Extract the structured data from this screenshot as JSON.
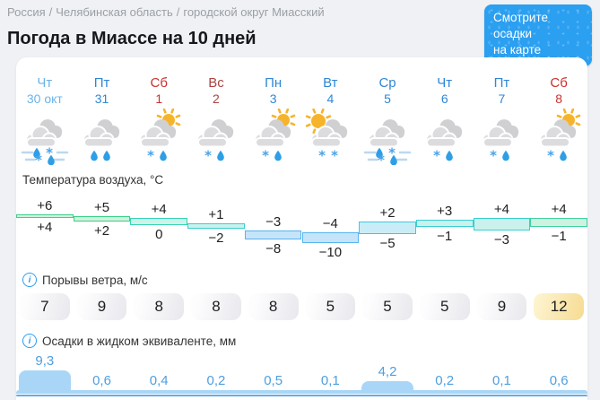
{
  "page": {
    "breadcrumb": [
      "Россия",
      "Челябинская область",
      "городской округ Миасский"
    ],
    "breadcrumb_separator": "/",
    "title": "Погода в Миассе на 10 дней"
  },
  "map_button": {
    "label_line1": "Смотрите осадки",
    "label_line2": "на карте"
  },
  "sections": {
    "temperature_label": "Температура воздуха, °C",
    "wind_label": "Порывы ветра, м/с",
    "precip_label": "Осадки в жидком эквиваленте, мм"
  },
  "days": [
    {
      "weekday": "Чт",
      "date": "30 окт",
      "color": "#6db3e8",
      "icon": {
        "name": "cloud-sleet-mist-icon",
        "sun": false,
        "mist": true,
        "precip": [
          [
            "rain",
            "snow"
          ],
          [
            "snow",
            "rain"
          ]
        ]
      }
    },
    {
      "weekday": "Пт",
      "date": "31",
      "color": "#2f87d5",
      "icon": {
        "name": "cloud-rain-icon",
        "sun": false,
        "mist": false,
        "precip": [
          [
            "rain",
            "rain"
          ]
        ]
      }
    },
    {
      "weekday": "Сб",
      "date": "1",
      "color": "#c9302c",
      "icon": {
        "name": "sun-cloud-sleet-icon",
        "sun": true,
        "sun_pos": "right",
        "mist": false,
        "precip": [
          [
            "snow",
            "rain"
          ]
        ]
      }
    },
    {
      "weekday": "Вс",
      "date": "2",
      "color": "#a94442",
      "icon": {
        "name": "cloud-sleet-icon",
        "sun": false,
        "mist": false,
        "precip": [
          [
            "snow",
            "rain"
          ]
        ]
      }
    },
    {
      "weekday": "Пн",
      "date": "3",
      "color": "#2f87d5",
      "icon": {
        "name": "sun-cloud-sleet-icon",
        "sun": true,
        "sun_pos": "right",
        "mist": false,
        "precip": [
          [
            "snow",
            "rain"
          ]
        ]
      }
    },
    {
      "weekday": "Вт",
      "date": "4",
      "color": "#2f87d5",
      "icon": {
        "name": "sun-cloud-snow-icon",
        "sun": true,
        "sun_pos": "left",
        "mist": false,
        "precip": [
          [
            "snow",
            "snow"
          ]
        ]
      }
    },
    {
      "weekday": "Ср",
      "date": "5",
      "color": "#2f87d5",
      "icon": {
        "name": "cloud-sleet-mist-icon",
        "sun": false,
        "mist": true,
        "precip": [
          [
            "rain",
            "snow"
          ],
          [
            "snow",
            "rain"
          ]
        ]
      }
    },
    {
      "weekday": "Чт",
      "date": "6",
      "color": "#2f87d5",
      "icon": {
        "name": "cloud-sleet-icon",
        "sun": false,
        "mist": false,
        "precip": [
          [
            "snow",
            "rain"
          ]
        ]
      }
    },
    {
      "weekday": "Пт",
      "date": "7",
      "color": "#2f87d5",
      "icon": {
        "name": "cloud-sleet-icon",
        "sun": false,
        "mist": false,
        "precip": [
          [
            "snow",
            "rain"
          ]
        ]
      }
    },
    {
      "weekday": "Сб",
      "date": "8",
      "color": "#c9302c",
      "icon": {
        "name": "sun-cloud-sleet-icon",
        "sun": true,
        "sun_pos": "right",
        "mist": false,
        "precip": [
          [
            "snow",
            "rain"
          ]
        ]
      }
    }
  ],
  "chart_data": [
    {
      "type": "area",
      "title": "Температура воздуха, °C",
      "categories": [
        "Чт 30 окт",
        "Пт 31",
        "Сб 1",
        "Вс 2",
        "Пн 3",
        "Вт 4",
        "Ср 5",
        "Чт 6",
        "Пт 7",
        "Сб 8"
      ],
      "series": [
        {
          "name": "max",
          "values": [
            6,
            5,
            4,
            1,
            -3,
            -4,
            2,
            3,
            4,
            4
          ]
        },
        {
          "name": "min",
          "values": [
            4,
            2,
            0,
            -2,
            -8,
            -10,
            -5,
            -1,
            -3,
            -1
          ]
        }
      ],
      "max_labels": [
        "+6",
        "+5",
        "+4",
        "+1",
        "−3",
        "−4",
        "+2",
        "+3",
        "+4",
        "+4"
      ],
      "min_labels": [
        "+4",
        "+2",
        "0",
        "−2",
        "−8",
        "−10",
        "−5",
        "−1",
        "−3",
        "−1"
      ],
      "band_colors": [
        {
          "fill": "#cff3db",
          "border": "#3fce8b"
        },
        {
          "fill": "#cff3db",
          "border": "#3fce8b"
        },
        {
          "fill": "#cdf2e9",
          "border": "#38d2b4"
        },
        {
          "fill": "#caf1ec",
          "border": "#38cfd0"
        },
        {
          "fill": "#c5e4fa",
          "border": "#57b4ef"
        },
        {
          "fill": "#c5e4fa",
          "border": "#57b4ef"
        },
        {
          "fill": "#c9edf6",
          "border": "#45c4e2"
        },
        {
          "fill": "#caf1ec",
          "border": "#38cfd0"
        },
        {
          "fill": "#caf1ec",
          "border": "#38cfd0"
        },
        {
          "fill": "#cdf2e0",
          "border": "#3fd0a0"
        }
      ],
      "ylim": [
        -10,
        6
      ]
    },
    {
      "type": "table",
      "title": "Порывы ветра, м/с",
      "values": [
        7,
        9,
        8,
        8,
        8,
        5,
        5,
        5,
        9,
        12
      ],
      "highlight_last": true,
      "highlight_color": "#f6db92"
    },
    {
      "type": "bar",
      "title": "Осадки в жидком эквиваленте, мм",
      "values": [
        9.3,
        0.6,
        0.4,
        0.2,
        0.5,
        0.1,
        4.2,
        0.2,
        0.1,
        0.6
      ],
      "labels": [
        "9,3",
        "0,6",
        "0,4",
        "0,2",
        "0,5",
        "0,1",
        "4,2",
        "0,2",
        "0,1",
        "0,6"
      ],
      "bar_color": "#a9d6f6",
      "label_color": "#4d9fe0"
    }
  ]
}
